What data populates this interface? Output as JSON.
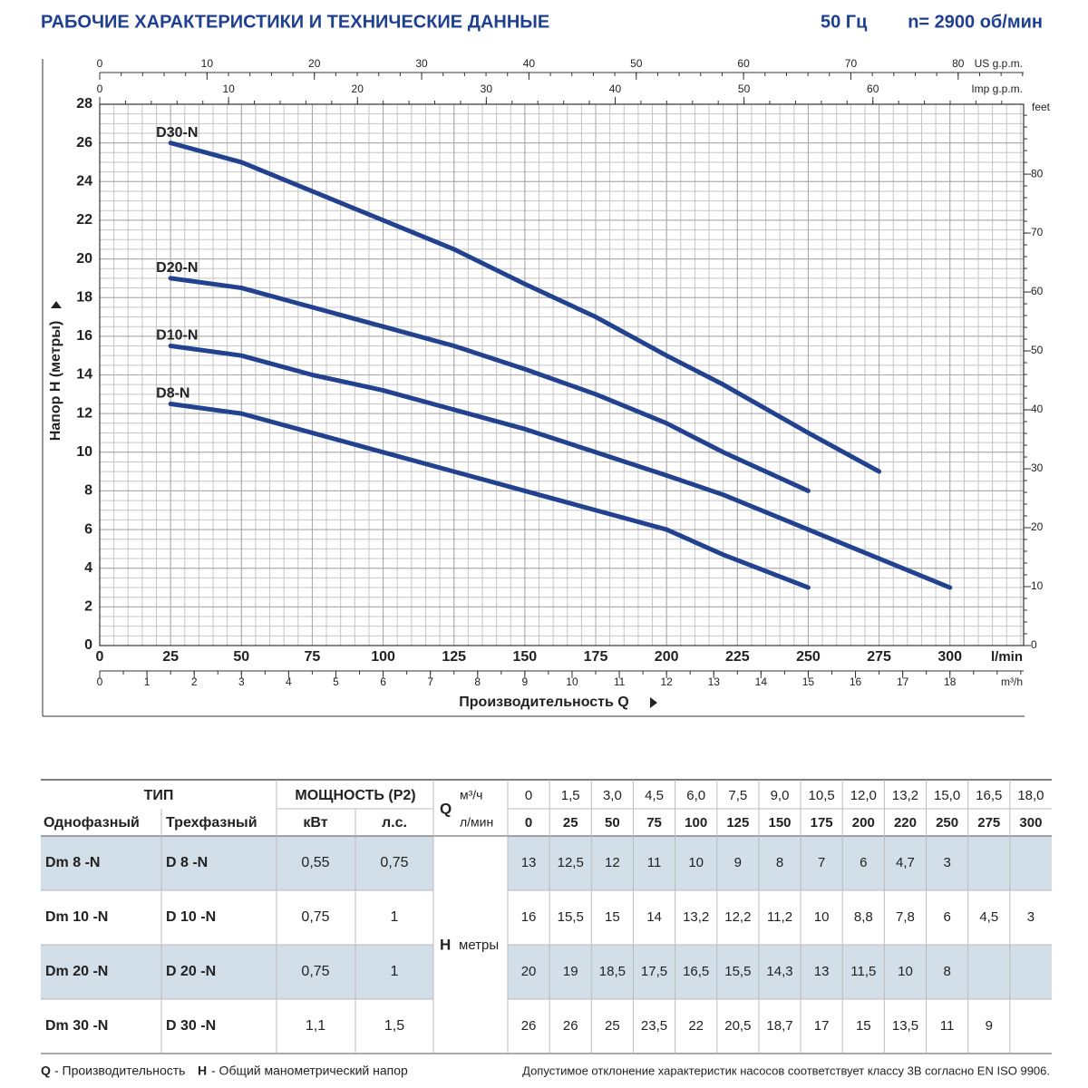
{
  "header": {
    "title": "РАБОЧИЕ ХАРАКТЕРИСТИКИ И ТЕХНИЧЕСКИЕ ДАННЫЕ",
    "frequency": "50 Гц",
    "speed": "n= 2900 об/мин"
  },
  "chart_data": {
    "type": "line",
    "ylabel": "Напор H (метры)",
    "xlabel": "Производительность Q",
    "xunit": "l/min",
    "xlim": [
      0,
      326
    ],
    "ylim": [
      0,
      28
    ],
    "xticks": [
      0,
      25,
      50,
      75,
      100,
      125,
      150,
      175,
      200,
      225,
      250,
      275,
      300
    ],
    "yticks": [
      0,
      2,
      4,
      6,
      8,
      10,
      12,
      14,
      16,
      18,
      20,
      22,
      24,
      26,
      28
    ],
    "grid": true,
    "x": [
      25,
      50,
      75,
      100,
      125,
      150,
      175,
      200,
      220,
      250,
      275,
      300
    ],
    "series": [
      {
        "name": "D8-N",
        "color": "#22418f",
        "values": [
          12.5,
          12,
          11,
          10,
          9,
          8,
          7,
          6,
          4.7,
          3,
          null,
          null
        ]
      },
      {
        "name": "D10-N",
        "color": "#22418f",
        "values": [
          15.5,
          15,
          14,
          13.2,
          12.2,
          11.2,
          10,
          8.8,
          7.8,
          6,
          4.5,
          3
        ]
      },
      {
        "name": "D20-N",
        "color": "#22418f",
        "values": [
          19,
          18.5,
          17.5,
          16.5,
          15.5,
          14.3,
          13,
          11.5,
          10,
          8,
          null,
          null
        ]
      },
      {
        "name": "D30-N",
        "color": "#22418f",
        "values": [
          26,
          25,
          23.5,
          22,
          20.5,
          18.7,
          17,
          15,
          13.5,
          11,
          9,
          null
        ]
      }
    ],
    "us_axis": {
      "label": "US g.p.m.",
      "lim": [
        0,
        86.1
      ],
      "ticks": [
        0,
        10,
        20,
        30,
        40,
        50,
        60,
        70,
        80
      ]
    },
    "imp_axis": {
      "label": "Imp g.p.m.",
      "lim": [
        0,
        71.7
      ],
      "ticks": [
        0,
        10,
        20,
        30,
        40,
        50,
        60
      ]
    },
    "m3h_axis": {
      "label": "m³/h",
      "lim": [
        0,
        19.56
      ],
      "ticks": [
        0,
        1,
        2,
        3,
        4,
        5,
        6,
        7,
        8,
        9,
        10,
        11,
        12,
        13,
        14,
        15,
        16,
        17,
        18
      ]
    },
    "feet_axis": {
      "label": "feet",
      "lim": [
        0,
        91.86
      ],
      "ticks": [
        0,
        10,
        20,
        30,
        40,
        50,
        60,
        70,
        80
      ]
    }
  },
  "table": {
    "type_header": "ТИП",
    "power_header": "МОЩНОСТЬ (P2)",
    "single_phase": "Однофазный",
    "three_phase": "Трехфазный",
    "kw": "кВт",
    "hp": "л.с.",
    "q_symbol": "Q",
    "q_m3h_unit": "м³/ч",
    "q_lmin_unit": "л/мин",
    "h_symbol": "H",
    "h_unit": "метры",
    "q_m3h": [
      "0",
      "1,5",
      "3,0",
      "4,5",
      "6,0",
      "7,5",
      "9,0",
      "10,5",
      "12,0",
      "13,2",
      "15,0",
      "16,5",
      "18,0"
    ],
    "q_lmin": [
      "0",
      "25",
      "50",
      "75",
      "100",
      "125",
      "150",
      "175",
      "200",
      "220",
      "250",
      "275",
      "300"
    ],
    "rows": [
      {
        "single": "Dm 8 -N",
        "three": "D 8 -N",
        "kw": "0,55",
        "hp": "0,75",
        "h": [
          "13",
          "12,5",
          "12",
          "11",
          "10",
          "9",
          "8",
          "7",
          "6",
          "4,7",
          "3"
        ]
      },
      {
        "single": "Dm 10 -N",
        "three": "D 10 -N",
        "kw": "0,75",
        "hp": "1",
        "h": [
          "16",
          "15,5",
          "15",
          "14",
          "13,2",
          "12,2",
          "11,2",
          "10",
          "8,8",
          "7,8",
          "6",
          "4,5",
          "3"
        ]
      },
      {
        "single": "Dm 20 -N",
        "three": "D 20 -N",
        "kw": "0,75",
        "hp": "1",
        "h": [
          "20",
          "19",
          "18,5",
          "17,5",
          "16,5",
          "15,5",
          "14,3",
          "13",
          "11,5",
          "10",
          "8"
        ]
      },
      {
        "single": "Dm 30 -N",
        "three": "D 30 -N",
        "kw": "1,1",
        "hp": "1,5",
        "h": [
          "26",
          "26",
          "25",
          "23,5",
          "22",
          "20,5",
          "18,7",
          "17",
          "15",
          "13,5",
          "11",
          "9"
        ]
      }
    ]
  },
  "footer": {
    "q_symbol": "Q",
    "q_text": "- Производительность",
    "h_symbol": "H",
    "h_text": "- Общий манометрический напор",
    "note": "Допустимое отклонение характеристик насосов соответствует классу 3B согласно EN ISO 9906."
  }
}
